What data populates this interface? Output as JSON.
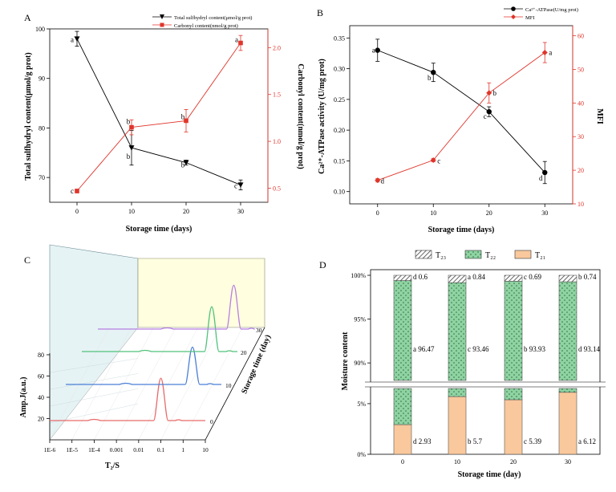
{
  "chart_data": [
    {
      "panel": "A",
      "type": "line",
      "xlabel": "Storage time (days)",
      "x": [
        0,
        10,
        20,
        30
      ],
      "xticks": [
        "0",
        "10",
        "20",
        "30"
      ],
      "xlim": [
        -5,
        35
      ],
      "ylabel": "Total sulfhydryl content(μmol/g prot)",
      "ylim": [
        65,
        100
      ],
      "yticks": [
        70,
        80,
        90,
        100
      ],
      "ylabel_right": "Carbonyl content(nmol/g prot)",
      "ylim_right": [
        0.35,
        2.2
      ],
      "yticks_right": [
        "0.5",
        "1.0",
        "1.5",
        "2.0"
      ],
      "legend_position": "top-right",
      "series": [
        {
          "name": "Total sulfhydryl content(μmol/g prot)",
          "axis": "left",
          "color": "#000000",
          "marker": "triangle-down",
          "values": [
            98,
            76,
            73,
            68.5
          ],
          "errors": [
            1.5,
            3.5,
            0.5,
            1.0
          ],
          "letters": [
            "a",
            "b",
            "b",
            "c"
          ]
        },
        {
          "name": "Carbonyl content(nmol/g prot)",
          "axis": "right",
          "color": "#e0352b",
          "marker": "square",
          "values": [
            0.47,
            1.15,
            1.22,
            2.05
          ],
          "errors": [
            0.02,
            0.08,
            0.12,
            0.08
          ],
          "letters": [
            "c",
            "b",
            "b",
            "a"
          ]
        }
      ]
    },
    {
      "panel": "B",
      "type": "line",
      "xlabel": "Storage time (days)",
      "x": [
        0,
        10,
        20,
        30
      ],
      "xticks": [
        "0",
        "10",
        "20",
        "30"
      ],
      "xlim": [
        -5,
        35
      ],
      "ylabel": "Ca²⁺-ATPase activity (U/mg prot)",
      "ylim": [
        0.08,
        0.37
      ],
      "yticks": [
        "0.10",
        "0.15",
        "0.20",
        "0.25",
        "0.30",
        "0.35"
      ],
      "ylabel_right": "MFI",
      "ylim_right": [
        10,
        63
      ],
      "yticks_right": [
        "10",
        "20",
        "30",
        "40",
        "50",
        "60"
      ],
      "legend_position": "top-right",
      "series": [
        {
          "name": "Ca²⁺-ATPase(U/mg prot)",
          "axis": "left",
          "color": "#000000",
          "marker": "circle",
          "values": [
            0.33,
            0.294,
            0.23,
            0.131
          ],
          "errors": [
            0.018,
            0.015,
            0.008,
            0.018
          ],
          "letters": [
            "a",
            "b",
            "c",
            "d"
          ]
        },
        {
          "name": "MFI",
          "axis": "right",
          "color": "#e0352b",
          "marker": "diamond",
          "values": [
            17,
            23,
            43,
            55
          ],
          "errors": [
            0.5,
            0.5,
            3,
            3
          ],
          "letters": [
            "d",
            "c",
            "b",
            "a"
          ]
        }
      ]
    },
    {
      "panel": "C",
      "type": "line",
      "xlabel": "T₂/S",
      "x_scale": "log",
      "xticks": [
        "1E-6",
        "1E-5",
        "1E-4",
        "0.001",
        "0.01",
        "0.1",
        "1",
        "10"
      ],
      "ylabel": "Amp.J(a.u.)",
      "yticks": [
        "20",
        "40",
        "60",
        "80"
      ],
      "zlabel": "Storage time (day)",
      "zticks": [
        "0",
        "10",
        "20",
        "30"
      ],
      "series": [
        {
          "name": "0",
          "color": "#e86a6a",
          "peak_T2_s": 0.1,
          "peak_amp": 85
        },
        {
          "name": "10",
          "color": "#4a7fd6",
          "peak_T2_s": 0.5,
          "peak_amp": 75
        },
        {
          "name": "20",
          "color": "#52c27a",
          "peak_T2_s": 0.7,
          "peak_amp": 90
        },
        {
          "name": "30",
          "color": "#b67fe0",
          "peak_T2_s": 1.3,
          "peak_amp": 88
        }
      ]
    },
    {
      "panel": "D",
      "type": "bar",
      "stacked": true,
      "xlabel": "Storage time (day)",
      "ylabel": "Moisture content",
      "categories": [
        "0",
        "10",
        "20",
        "30"
      ],
      "y_axis_break": true,
      "yticks": [
        "0%",
        "5%",
        "90%",
        "95%",
        "100%"
      ],
      "legend_position": "top",
      "series": [
        {
          "name": "T₂₁",
          "color": "#f9c89c",
          "pattern": "solid",
          "values": [
            2.93,
            5.7,
            5.39,
            6.12
          ],
          "labels": [
            "d 2.93",
            "b 5.7",
            "c 5.39",
            "a 6.12"
          ]
        },
        {
          "name": "T₂₂",
          "color": "#8fd3a3",
          "pattern": "dots",
          "values": [
            96.47,
            93.46,
            93.93,
            93.14
          ],
          "labels": [
            "a 96.47",
            "c 93.46",
            "b 93.93",
            "d 93.14"
          ]
        },
        {
          "name": "T₂₃",
          "color": "#ffffff",
          "pattern": "hatch",
          "values": [
            0.6,
            0.84,
            0.69,
            0.74
          ],
          "labels": [
            "d 0.6",
            "a 0.84",
            "c 0.69",
            "b 0.74"
          ]
        }
      ]
    }
  ],
  "panel_letters": [
    "A",
    "B",
    "C",
    "D"
  ]
}
